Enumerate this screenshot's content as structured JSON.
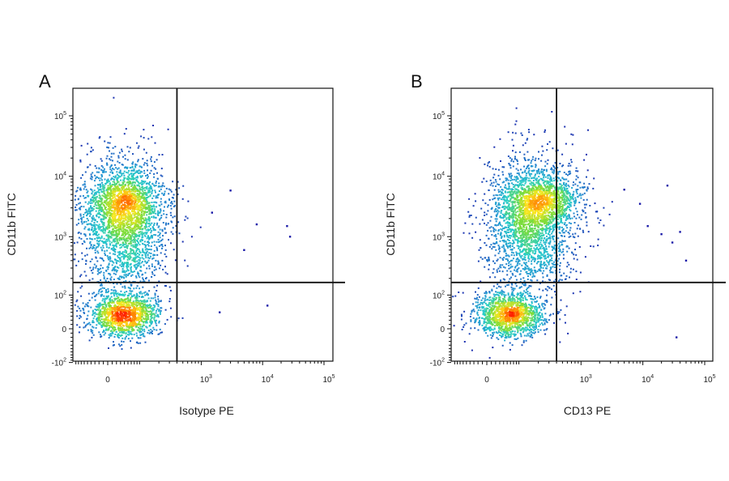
{
  "chart_data": [
    {
      "type": "scatter",
      "subtype": "flow-cytometry-density-dot-plot",
      "panel_label": "A",
      "xlabel": "Isotype PE",
      "ylabel": "CD11b FITC",
      "x_scale": "biexponential",
      "y_scale": "biexponential",
      "x_tick_labels": [
        "0",
        "10^3",
        "10^4",
        "10^5"
      ],
      "y_tick_labels": [
        "-10^2",
        "0",
        "10^2",
        "10^3",
        "10^4",
        "10^5"
      ],
      "x_range": [
        -100,
        200000
      ],
      "y_range": [
        -150,
        200000
      ],
      "quadrant_gate": {
        "x": 400,
        "y": 170
      },
      "grid": false,
      "legend": "none",
      "populations": [
        {
          "x": 40,
          "y": 1700,
          "n": 2200
        },
        {
          "x": 40,
          "y": 4200,
          "n": 700
        },
        {
          "x": 40,
          "y": 35,
          "n": 1400
        }
      ],
      "outlier_points": [
        {
          "x": 3000,
          "y": 5800
        },
        {
          "x": 8000,
          "y": 1600
        },
        {
          "x": 12000,
          "y": 60
        },
        {
          "x": 25000,
          "y": 1500
        },
        {
          "x": 28000,
          "y": 1000
        },
        {
          "x": 5000,
          "y": 600
        },
        {
          "x": 1500,
          "y": 2500
        },
        {
          "x": 2000,
          "y": 40
        }
      ]
    },
    {
      "type": "scatter",
      "subtype": "flow-cytometry-density-dot-plot",
      "panel_label": "B",
      "xlabel": "CD13 PE",
      "ylabel": "CD11b FITC",
      "x_scale": "biexponential",
      "y_scale": "biexponential",
      "x_tick_labels": [
        "0",
        "10^3",
        "10^4",
        "10^5"
      ],
      "y_tick_labels": [
        "-10^2",
        "0",
        "10^2",
        "10^3",
        "10^4",
        "10^5"
      ],
      "x_range": [
        -100,
        200000
      ],
      "y_range": [
        -150,
        200000
      ],
      "quadrant_gate": {
        "x": 400,
        "y": 170
      },
      "grid": false,
      "legend": "none",
      "populations": [
        {
          "x": 150,
          "y": 1700,
          "n": 2200
        },
        {
          "x": 250,
          "y": 4000,
          "n": 900
        },
        {
          "x": 60,
          "y": 35,
          "n": 1400
        }
      ],
      "outlier_points": [
        {
          "x": 5000,
          "y": 6000
        },
        {
          "x": 9000,
          "y": 3500
        },
        {
          "x": 12000,
          "y": 1500
        },
        {
          "x": 20000,
          "y": 1100
        },
        {
          "x": 25000,
          "y": 7000
        },
        {
          "x": 40000,
          "y": 1200
        },
        {
          "x": 50000,
          "y": 400
        },
        {
          "x": 35000,
          "y": -20
        },
        {
          "x": 30000,
          "y": 800
        }
      ]
    }
  ],
  "colors": {
    "low_density": "#1a1aa8",
    "mid_density": "#27c4d4",
    "high_density": "#ff2200",
    "axes": "#111111"
  }
}
